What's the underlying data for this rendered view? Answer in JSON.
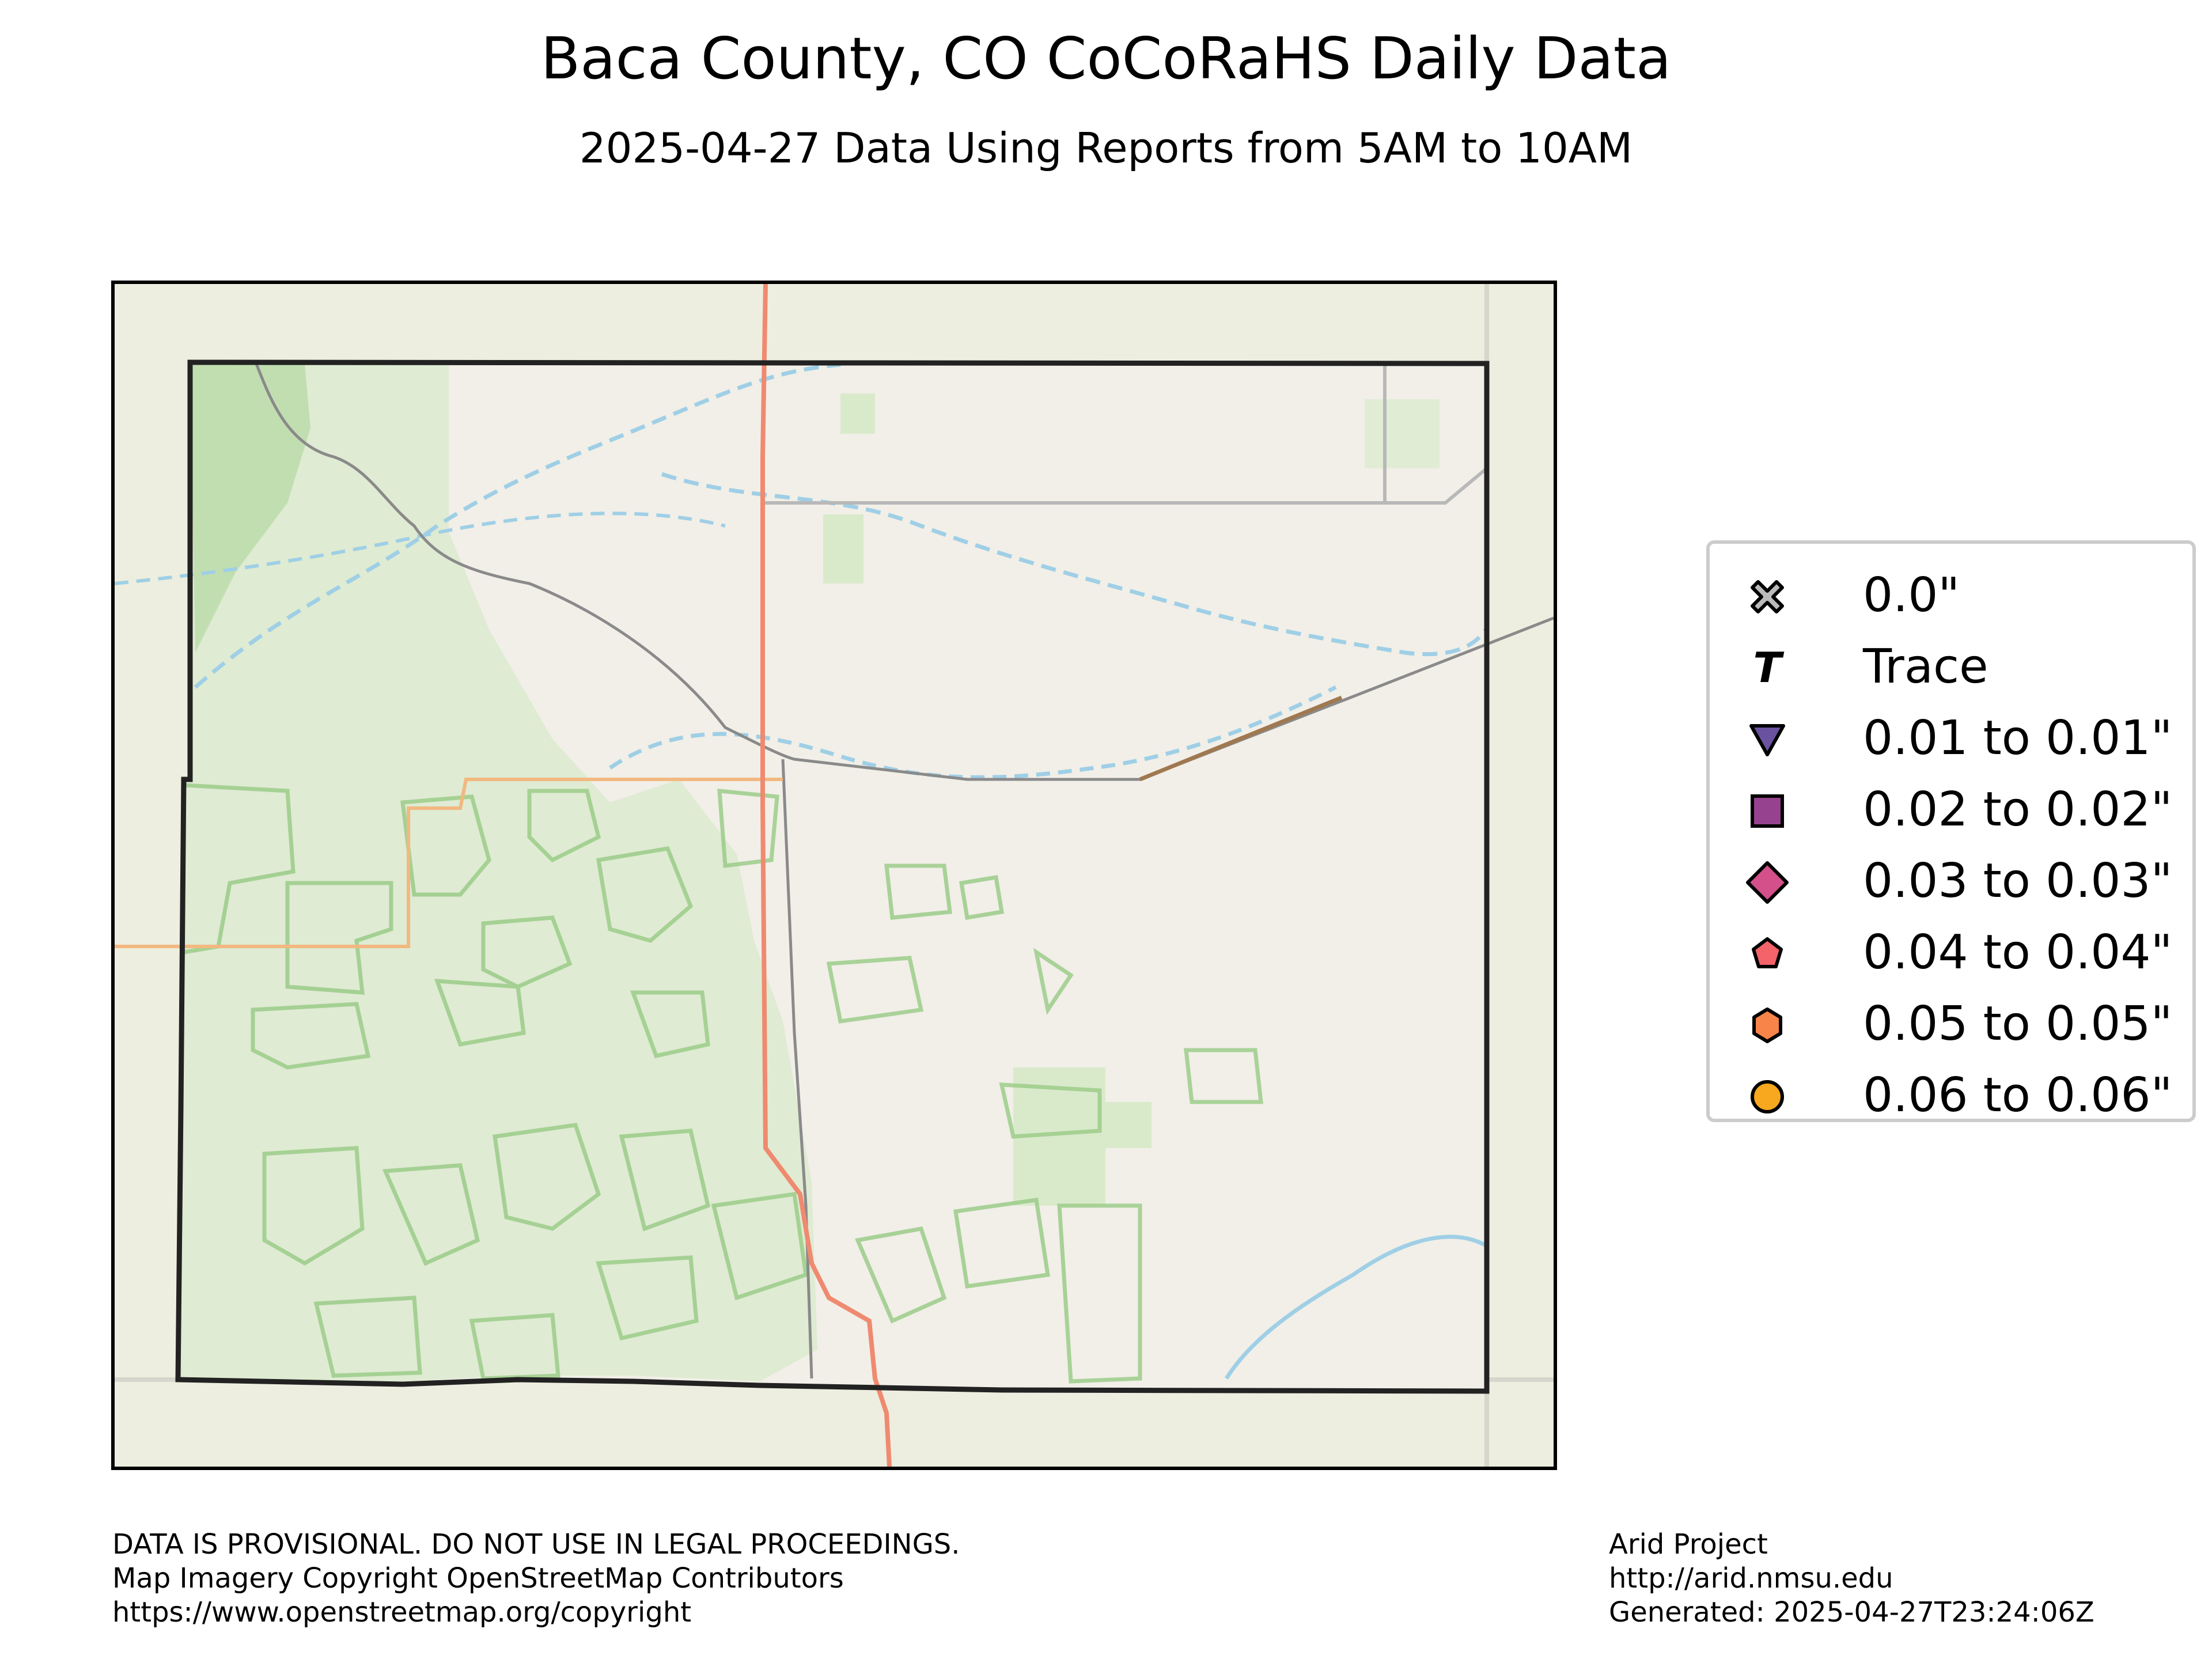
{
  "header": {
    "title": "Baca County, CO CoCoRaHS Daily Data",
    "subtitle": "2025-04-27 Data Using Reports from 5AM to 10AM"
  },
  "map": {
    "basemap": "OpenStreetMap",
    "region": "Baca County, CO",
    "colors": {
      "land": "#edeedf",
      "county_fill": "#f1efe8",
      "forest": "#cfe8bf",
      "boundary": "#222222",
      "highway": "#ef8a70",
      "river": "#9fcfe6",
      "road": "#8a8a8a"
    },
    "station_reports": []
  },
  "legend": {
    "items": [
      {
        "label": "0.0\"",
        "marker": "x-icon",
        "color": "#bbbbbb"
      },
      {
        "label": "Trace",
        "marker": "trace-t-icon",
        "color": "#000000"
      },
      {
        "label": "0.01 to 0.01\"",
        "marker": "triangle-down-icon",
        "color": "#6a52a0"
      },
      {
        "label": "0.02 to 0.02\"",
        "marker": "square-icon",
        "color": "#97428e"
      },
      {
        "label": "0.03 to 0.03\"",
        "marker": "diamond-icon",
        "color": "#d3508a"
      },
      {
        "label": "0.04 to 0.04\"",
        "marker": "pentagon-icon",
        "color": "#f4636a"
      },
      {
        "label": "0.05 to 0.05\"",
        "marker": "hexagon-icon",
        "color": "#f8844a"
      },
      {
        "label": "0.06 to 0.06\"",
        "marker": "circle-icon",
        "color": "#f8a81e"
      }
    ]
  },
  "footer": {
    "left": [
      "DATA IS PROVISIONAL. DO NOT USE IN LEGAL PROCEEDINGS.",
      "Map Imagery Copyright OpenStreetMap Contributors",
      "https://www.openstreetmap.org/copyright"
    ],
    "right": [
      "Arid Project",
      "http://arid.nmsu.edu",
      "Generated: 2025-04-27T23:24:06Z"
    ]
  }
}
